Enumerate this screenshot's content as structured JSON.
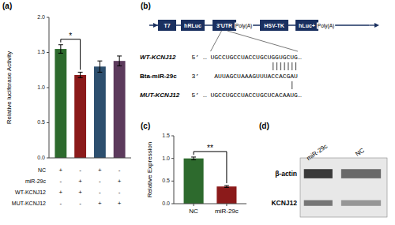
{
  "chart_data": [
    {
      "type": "bar",
      "title": "(a)",
      "ylabel": "Relative luciferase Activity",
      "values": [
        1.55,
        1.18,
        1.3,
        1.38
      ],
      "errors": [
        0.06,
        0.04,
        0.08,
        0.07
      ],
      "colors": [
        "#2d6a2d",
        "#8b1a1a",
        "#2d4f6e",
        "#5c3a5c"
      ],
      "ylim": [
        0,
        2.0
      ],
      "yticks": [
        {
          "value": 0,
          "label": "0.0"
        },
        0.5,
        {
          "value": 1,
          "label": "1.0"
        },
        1.5,
        {
          "value": 2,
          "label": "2.0"
        }
      ],
      "annotations": [
        "*"
      ],
      "row_labels": [
        "NC",
        "miR-29c",
        "WT-KCNJ12",
        "MUT-KCNJ12"
      ],
      "row_values": [
        [
          "+",
          "-",
          "+",
          "-"
        ],
        [
          "-",
          "+",
          "-",
          "+"
        ],
        [
          "+",
          "+",
          "-",
          "-"
        ],
        [
          "-",
          "-",
          "+",
          "+"
        ]
      ],
      "tick_labels": "y"
    },
    {
      "type": "diagram",
      "title": "(b)",
      "color": "#1a3060",
      "annotations": [
        "T7",
        "hRLuc",
        "3’UTR",
        "Poly(A)",
        "HSV-TK",
        "hLuc+",
        "Poly(A)"
      ],
      "labels": [
        "WT-KCNJ12",
        "Bta-miR-29c",
        "MUT-KCNJ12"
      ],
      "sequences": [
        "5’ … UGCCUGCCUACCUGCUGGUGCUG…",
        "3’    AUUAGCUAAAGUUUACCACGAU",
        "5’ … UGCCUGCCUACCUGCUCACAAUG…"
      ]
    },
    {
      "type": "bar",
      "title": "(c)",
      "ylabel": "Relative Expression",
      "categories": [
        "NC",
        "miR-29c"
      ],
      "values": [
        1.0,
        0.38
      ],
      "errors": [
        0.03,
        0.02
      ],
      "colors": [
        "#2d6a2d",
        "#8b1a1a"
      ],
      "ylim": [
        0,
        1.5
      ],
      "yticks": [
        {
          "value": 0,
          "label": "0.0"
        },
        0.5,
        {
          "value": 1,
          "label": "1.0"
        },
        1.5
      ],
      "annotations": [
        "**"
      ]
    },
    {
      "type": "blot",
      "title": "(d)",
      "categories": [
        "miR-29c",
        "NC"
      ],
      "row_labels": [
        "β-actin",
        "KCNJ12"
      ],
      "colors": [
        "#1a1a1a",
        "#333333",
        "#2a2a2a",
        "#444444"
      ]
    }
  ]
}
